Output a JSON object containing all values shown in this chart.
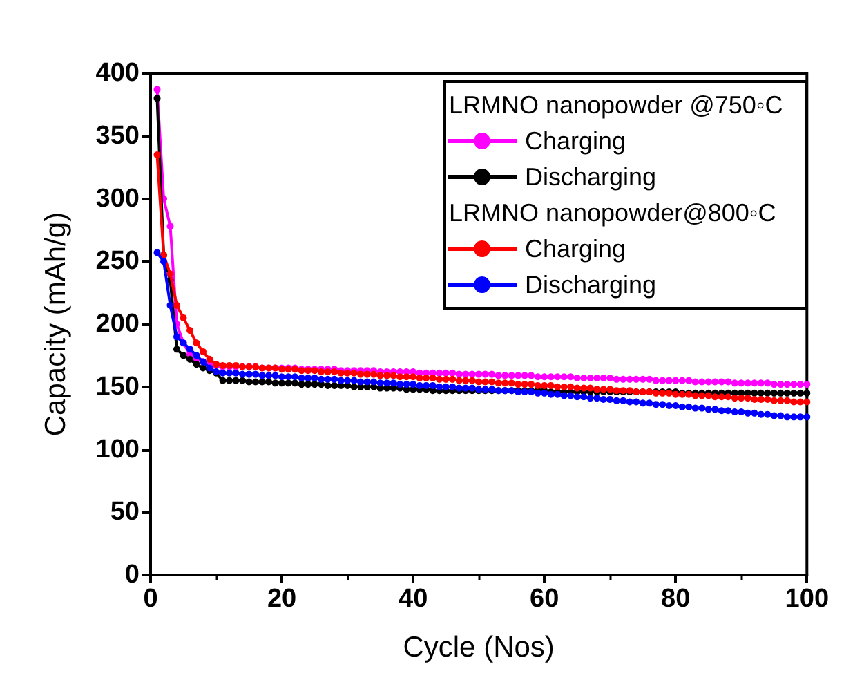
{
  "chart_data": {
    "type": "line",
    "xlabel": "Cycle (Nos)",
    "ylabel": "Capacity (mAh/g)",
    "xlim": [
      0,
      100
    ],
    "xticks": [
      0,
      20,
      40,
      60,
      80,
      100
    ],
    "ylim": [
      0,
      400
    ],
    "yticks": [
      0,
      50,
      100,
      150,
      200,
      250,
      300,
      350,
      400
    ],
    "grid": false,
    "legend": "top right",
    "marker": "circle",
    "line_style": "solid",
    "annotations": [
      "LRMNO nanopowder @750◦C",
      "LRMNO nanopowder@800◦C"
    ],
    "x": [
      1,
      2,
      3,
      4,
      5,
      6,
      7,
      8,
      9,
      10,
      11,
      12,
      13,
      14,
      15,
      16,
      17,
      18,
      19,
      20,
      21,
      22,
      23,
      24,
      25,
      26,
      27,
      28,
      29,
      30,
      31,
      32,
      33,
      34,
      35,
      36,
      37,
      38,
      39,
      40,
      41,
      42,
      43,
      44,
      45,
      46,
      47,
      48,
      49,
      50,
      51,
      52,
      53,
      54,
      55,
      56,
      57,
      58,
      59,
      60,
      61,
      62,
      63,
      64,
      65,
      66,
      67,
      68,
      69,
      70,
      71,
      72,
      73,
      74,
      75,
      76,
      77,
      78,
      79,
      80,
      81,
      82,
      83,
      84,
      85,
      86,
      87,
      88,
      89,
      90,
      91,
      92,
      93,
      94,
      95,
      96,
      97,
      98,
      99,
      100
    ],
    "series": [
      {
        "name": "Charging",
        "color": "#ff00ff",
        "values": [
          387,
          300,
          278,
          200,
          185,
          176,
          172,
          170,
          168,
          167,
          166,
          166,
          166,
          166,
          166,
          166,
          165,
          165,
          165,
          165,
          165,
          165,
          164,
          164,
          164,
          164,
          164,
          164,
          163,
          163,
          163,
          163,
          163,
          163,
          162,
          162,
          162,
          162,
          162,
          162,
          161,
          161,
          161,
          161,
          161,
          161,
          160,
          160,
          160,
          160,
          160,
          160,
          159,
          159,
          159,
          159,
          159,
          159,
          158,
          158,
          158,
          158,
          158,
          158,
          157,
          157,
          157,
          157,
          157,
          157,
          156,
          156,
          156,
          156,
          156,
          156,
          155,
          155,
          155,
          155,
          155,
          155,
          154,
          154,
          154,
          154,
          154,
          154,
          153,
          153,
          153,
          153,
          153,
          153,
          152,
          152,
          152,
          152,
          152,
          152
        ]
      },
      {
        "name": "Discharging",
        "color": "#000000",
        "values": [
          380,
          255,
          235,
          180,
          175,
          172,
          168,
          165,
          163,
          161,
          155,
          155,
          155,
          155,
          154,
          154,
          154,
          154,
          153,
          153,
          153,
          153,
          152,
          152,
          152,
          152,
          151,
          151,
          151,
          151,
          150,
          150,
          150,
          150,
          149,
          149,
          149,
          149,
          148,
          148,
          148,
          148,
          147,
          147,
          147,
          147,
          147,
          147,
          147,
          147,
          147,
          147,
          147,
          147,
          147,
          147,
          147,
          147,
          147,
          147,
          146,
          146,
          146,
          146,
          146,
          146,
          146,
          146,
          146,
          146,
          146,
          146,
          146,
          146,
          146,
          146,
          146,
          146,
          146,
          146,
          145,
          145,
          145,
          145,
          145,
          145,
          145,
          145,
          145,
          145,
          145,
          145,
          145,
          145,
          145,
          145,
          145,
          145,
          145,
          145
        ]
      },
      {
        "name": "Charging",
        "color": "#ff0000",
        "values": [
          335,
          255,
          240,
          215,
          205,
          195,
          185,
          178,
          172,
          168,
          167,
          167,
          167,
          166,
          166,
          166,
          165,
          165,
          165,
          164,
          164,
          164,
          163,
          163,
          163,
          162,
          162,
          162,
          161,
          161,
          161,
          160,
          160,
          160,
          159,
          159,
          159,
          158,
          158,
          158,
          157,
          157,
          157,
          156,
          156,
          156,
          155,
          155,
          155,
          154,
          154,
          154,
          153,
          153,
          153,
          152,
          152,
          152,
          151,
          151,
          151,
          150,
          150,
          150,
          149,
          149,
          149,
          148,
          148,
          148,
          147,
          147,
          147,
          146,
          146,
          146,
          145,
          145,
          145,
          144,
          144,
          144,
          143,
          143,
          143,
          142,
          142,
          142,
          141,
          141,
          141,
          140,
          140,
          140,
          139,
          139,
          139,
          138,
          138,
          138
        ]
      },
      {
        "name": "Discharging",
        "color": "#0000ff",
        "values": [
          257,
          250,
          215,
          190,
          185,
          180,
          175,
          170,
          165,
          162,
          161,
          161,
          161,
          160,
          160,
          160,
          159,
          159,
          159,
          158,
          158,
          158,
          157,
          157,
          157,
          156,
          156,
          156,
          155,
          155,
          155,
          154,
          154,
          154,
          153,
          153,
          153,
          152,
          152,
          152,
          151,
          151,
          151,
          150,
          150,
          150,
          149,
          149,
          149,
          148,
          148,
          148,
          147,
          147,
          147,
          146,
          146,
          146,
          145,
          145,
          144,
          144,
          143,
          143,
          142,
          142,
          141,
          141,
          140,
          140,
          139,
          139,
          138,
          138,
          137,
          137,
          136,
          136,
          135,
          135,
          134,
          134,
          133,
          133,
          132,
          132,
          131,
          131,
          130,
          130,
          129,
          129,
          128,
          128,
          127,
          127,
          126,
          126,
          126,
          126
        ]
      }
    ]
  }
}
